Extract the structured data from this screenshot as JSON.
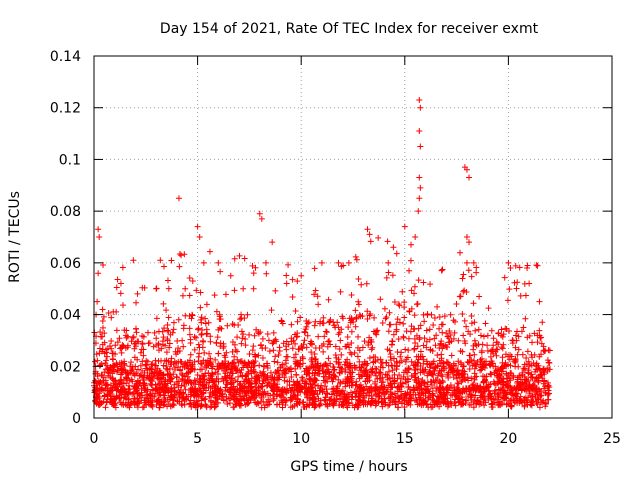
{
  "chart_data": {
    "type": "scatter",
    "title": "Day 154 of 2021, Rate Of TEC Index for receiver exmt",
    "xlabel": "GPS time / hours",
    "ylabel": "ROTI / TECUs",
    "xlim": [
      0,
      25
    ],
    "ylim": [
      0,
      0.14
    ],
    "xticks": [
      0,
      5,
      10,
      15,
      20,
      25
    ],
    "yticks": [
      0,
      0.02,
      0.04,
      0.06,
      0.08,
      0.1,
      0.12,
      0.14
    ],
    "xtick_labels": [
      "0",
      "5",
      "10",
      "15",
      "20",
      "25"
    ],
    "ytick_labels": [
      "0",
      "0.02",
      "0.04",
      "0.06",
      "0.08",
      "0.1",
      "0.12",
      "0.14"
    ],
    "grid": true,
    "marker": "+",
    "series": [
      {
        "name": "ROTI",
        "color": "#ff0000",
        "x_range": [
          0,
          22
        ],
        "sample_points": [
          {
            "x": 0.2,
            "y": 0.073
          },
          {
            "x": 0.25,
            "y": 0.07
          },
          {
            "x": 0.2,
            "y": 0.056
          },
          {
            "x": 0.15,
            "y": 0.045
          },
          {
            "x": 0.1,
            "y": 0.04
          },
          {
            "x": 1.3,
            "y": 0.052
          },
          {
            "x": 1.9,
            "y": 0.061
          },
          {
            "x": 2.1,
            "y": 0.048
          },
          {
            "x": 3.2,
            "y": 0.061
          },
          {
            "x": 3.0,
            "y": 0.05
          },
          {
            "x": 4.1,
            "y": 0.085
          },
          {
            "x": 4.4,
            "y": 0.05
          },
          {
            "x": 5.0,
            "y": 0.074
          },
          {
            "x": 5.1,
            "y": 0.07
          },
          {
            "x": 5.3,
            "y": 0.06
          },
          {
            "x": 6.0,
            "y": 0.06
          },
          {
            "x": 6.6,
            "y": 0.055
          },
          {
            "x": 7.2,
            "y": 0.05
          },
          {
            "x": 8.0,
            "y": 0.079
          },
          {
            "x": 8.1,
            "y": 0.077
          },
          {
            "x": 8.6,
            "y": 0.068
          },
          {
            "x": 8.3,
            "y": 0.06
          },
          {
            "x": 9.3,
            "y": 0.052
          },
          {
            "x": 10.0,
            "y": 0.055
          },
          {
            "x": 11.0,
            "y": 0.06
          },
          {
            "x": 11.8,
            "y": 0.06
          },
          {
            "x": 12.3,
            "y": 0.06
          },
          {
            "x": 13.2,
            "y": 0.073
          },
          {
            "x": 13.3,
            "y": 0.071
          },
          {
            "x": 14.2,
            "y": 0.06
          },
          {
            "x": 15.0,
            "y": 0.074
          },
          {
            "x": 15.3,
            "y": 0.067
          },
          {
            "x": 15.5,
            "y": 0.07
          },
          {
            "x": 15.7,
            "y": 0.123
          },
          {
            "x": 15.75,
            "y": 0.12
          },
          {
            "x": 15.7,
            "y": 0.111
          },
          {
            "x": 15.75,
            "y": 0.105
          },
          {
            "x": 15.7,
            "y": 0.093
          },
          {
            "x": 15.75,
            "y": 0.089
          },
          {
            "x": 15.7,
            "y": 0.085
          },
          {
            "x": 15.65,
            "y": 0.08
          },
          {
            "x": 17.9,
            "y": 0.097
          },
          {
            "x": 18.0,
            "y": 0.096
          },
          {
            "x": 18.1,
            "y": 0.093
          },
          {
            "x": 18.0,
            "y": 0.07
          },
          {
            "x": 18.1,
            "y": 0.068
          },
          {
            "x": 18.0,
            "y": 0.06
          },
          {
            "x": 20.0,
            "y": 0.06
          },
          {
            "x": 20.1,
            "y": 0.058
          },
          {
            "x": 20.9,
            "y": 0.058
          },
          {
            "x": 21.0,
            "y": 0.052
          },
          {
            "x": 21.5,
            "y": 0.045
          }
        ],
        "baseline_typical_range": [
          0.005,
          0.03
        ]
      }
    ]
  }
}
